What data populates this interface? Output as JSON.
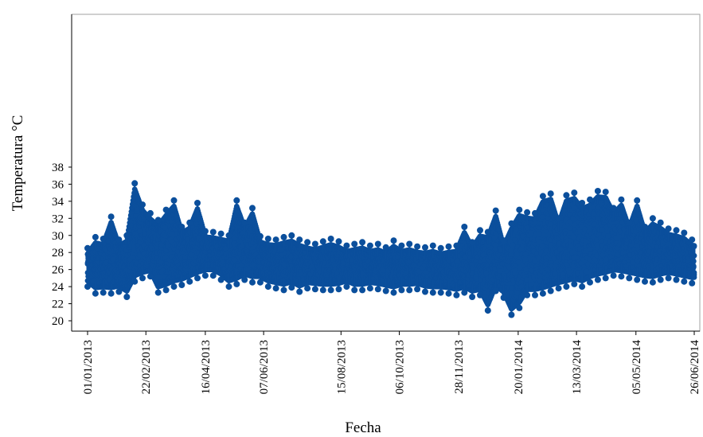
{
  "chart_data": {
    "type": "scatter",
    "title": "",
    "xlabel": "Fecha",
    "ylabel": "Temperatura °C",
    "ylim": [
      20,
      38
    ],
    "yticks": [
      20,
      22,
      24,
      26,
      28,
      30,
      32,
      34,
      36,
      38
    ],
    "xlim": [
      "2013-01-01",
      "2014-06-26"
    ],
    "xticks": [
      "01/01/2013",
      "22/02/2013",
      "16/04/2013",
      "07/06/2013",
      "15/08/2013",
      "06/10/2013",
      "28/11/2013",
      "20/01/2014",
      "13/03/2014",
      "05/05/2014",
      "26/06/2014"
    ],
    "grid": false,
    "legend": "none",
    "colors": {
      "series": "#0b4f9c",
      "axis": "#000000",
      "frame": "#a0a0a0"
    },
    "series": [
      {
        "markers": "filled-circle-with-line",
        "sampling": "envelope summarized by week; full record is sub-daily",
        "x": [
          "2013-01-01",
          "2013-01-08",
          "2013-01-15",
          "2013-01-22",
          "2013-01-29",
          "2013-02-05",
          "2013-02-12",
          "2013-02-19",
          "2013-02-26",
          "2013-03-05",
          "2013-03-12",
          "2013-03-19",
          "2013-03-26",
          "2013-04-02",
          "2013-04-09",
          "2013-04-16",
          "2013-04-23",
          "2013-04-30",
          "2013-05-07",
          "2013-05-14",
          "2013-05-21",
          "2013-05-28",
          "2013-06-04",
          "2013-06-11",
          "2013-06-18",
          "2013-06-25",
          "2013-07-02",
          "2013-07-09",
          "2013-07-16",
          "2013-07-23",
          "2013-07-30",
          "2013-08-06",
          "2013-08-13",
          "2013-08-20",
          "2013-08-27",
          "2013-09-03",
          "2013-09-10",
          "2013-09-17",
          "2013-09-24",
          "2013-10-01",
          "2013-10-08",
          "2013-10-15",
          "2013-10-22",
          "2013-10-29",
          "2013-11-05",
          "2013-11-12",
          "2013-11-19",
          "2013-11-26",
          "2013-12-03",
          "2013-12-10",
          "2013-12-17",
          "2013-12-24",
          "2013-12-31",
          "2014-01-07",
          "2014-01-14",
          "2014-01-21",
          "2014-01-28",
          "2014-02-04",
          "2014-02-11",
          "2014-02-18",
          "2014-02-25",
          "2014-03-04",
          "2014-03-11",
          "2014-03-18",
          "2014-03-25",
          "2014-04-01",
          "2014-04-08",
          "2014-04-15",
          "2014-04-22",
          "2014-04-29",
          "2014-05-06",
          "2014-05-13",
          "2014-05-20",
          "2014-05-27",
          "2014-06-03",
          "2014-06-10",
          "2014-06-17",
          "2014-06-24"
        ],
        "min": [
          24.0,
          23.2,
          23.3,
          23.2,
          23.4,
          22.8,
          24.6,
          25.0,
          25.2,
          23.3,
          23.6,
          24.0,
          24.2,
          24.6,
          25.0,
          25.3,
          25.3,
          24.8,
          24.0,
          24.3,
          24.8,
          24.5,
          24.5,
          24.0,
          23.8,
          23.6,
          23.9,
          23.4,
          23.8,
          23.7,
          23.6,
          23.6,
          23.7,
          24.0,
          23.6,
          23.6,
          23.8,
          23.7,
          23.5,
          23.3,
          23.6,
          23.6,
          23.7,
          23.4,
          23.3,
          23.3,
          23.2,
          23.0,
          23.3,
          22.8,
          23.0,
          21.2,
          23.5,
          22.7,
          20.7,
          21.5,
          23.0,
          23.0,
          23.2,
          23.5,
          23.8,
          24.0,
          24.3,
          24.0,
          24.5,
          24.8,
          25.0,
          25.3,
          25.2,
          25.0,
          24.8,
          24.6,
          24.5,
          24.8,
          25.0,
          24.8,
          24.6,
          24.4
        ],
        "max": [
          28.5,
          29.8,
          29.6,
          32.2,
          29.5,
          30.0,
          36.1,
          33.6,
          32.6,
          31.8,
          33.0,
          34.1,
          31.0,
          31.5,
          33.8,
          30.5,
          30.4,
          30.2,
          30.0,
          34.1,
          31.5,
          33.2,
          29.9,
          29.6,
          29.5,
          29.8,
          30.0,
          29.5,
          29.2,
          29.0,
          29.3,
          29.6,
          29.3,
          28.8,
          29.0,
          29.2,
          28.8,
          29.0,
          28.6,
          29.4,
          28.8,
          29.0,
          28.7,
          28.6,
          28.8,
          28.5,
          28.7,
          28.8,
          31.0,
          29.2,
          30.6,
          30.4,
          32.9,
          29.4,
          31.4,
          33.0,
          32.7,
          32.6,
          34.6,
          34.9,
          32.0,
          34.7,
          35.0,
          33.8,
          34.2,
          35.2,
          35.1,
          33.2,
          34.2,
          31.5,
          34.1,
          31.0,
          32.0,
          31.5,
          30.8,
          30.6,
          30.3,
          29.5
        ]
      }
    ]
  }
}
